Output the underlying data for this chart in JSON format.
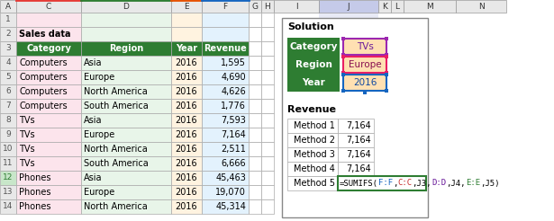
{
  "left_cols": [
    "A",
    "C",
    "D",
    "E",
    "F",
    "G",
    "H"
  ],
  "right_cols": [
    "I",
    "J",
    "K",
    "L",
    "M",
    "N"
  ],
  "left_data": [
    [
      "1",
      "",
      "",
      "",
      ""
    ],
    [
      "2",
      "Sales data",
      "",
      "",
      ""
    ],
    [
      "3",
      "Category",
      "Region",
      "Year",
      "Revenue"
    ],
    [
      "4",
      "Computers",
      "Asia",
      "2016",
      "1,595"
    ],
    [
      "5",
      "Computers",
      "Europe",
      "2016",
      "4,690"
    ],
    [
      "6",
      "Computers",
      "North America",
      "2016",
      "4,626"
    ],
    [
      "7",
      "Computers",
      "South America",
      "2016",
      "1,776"
    ],
    [
      "8",
      "TVs",
      "Asia",
      "2016",
      "7,593"
    ],
    [
      "9",
      "TVs",
      "Europe",
      "2016",
      "7,164"
    ],
    [
      "10",
      "TVs",
      "North America",
      "2016",
      "2,511"
    ],
    [
      "11",
      "TVs",
      "South America",
      "2016",
      "6,666"
    ],
    [
      "12",
      "Phones",
      "Asia",
      "2016",
      "45,463"
    ],
    [
      "13",
      "Phones",
      "Europe",
      "2016",
      "19,070"
    ],
    [
      "14",
      "Phones",
      "North America",
      "2016",
      "45,314"
    ]
  ],
  "header_bg": "#2e7d32",
  "header_fg": "#ffffff",
  "col_c_bg": "#fce4ec",
  "col_d_bg": "#e8f5e9",
  "col_e_bg": "#fff3e0",
  "col_f_bg": "#e3f2fd",
  "col_c_border": "#e53935",
  "col_d_border": "#2e7d32",
  "col_e_border": "#e65100",
  "col_f_border": "#1565c0",
  "row12_highlight": "#c8e6c9",
  "solution_title": "Solution",
  "sol_label_bg": "#2e7d32",
  "sol_label_fg": "#ffffff",
  "sol_tvs_text": "TVs",
  "sol_europe_text": "Europe",
  "sol_year_text": "2016",
  "sol_tvs_bg": "#ffe0b2",
  "sol_europe_bg": "#ffe0b2",
  "sol_year_bg": "#ffe0b2",
  "sol_tvs_border": "#9c27b0",
  "sol_europe_border": "#e91e63",
  "sol_year_border": "#1565c0",
  "sol_tvs_color": "#6a1b9a",
  "sol_europe_color": "#880e4f",
  "sol_year_color": "#0d47a1",
  "revenue_label": "Revenue",
  "methods": [
    "Method 1",
    "Method 2",
    "Method 3",
    "Method 4",
    "Method 5"
  ],
  "method_values": [
    "7,164",
    "7,164",
    "7,164",
    "7,164",
    ""
  ],
  "formula_parts": [
    {
      "text": "=SUMIFS(",
      "color": "#000000"
    },
    {
      "text": "F:F",
      "color": "#1565c0"
    },
    {
      "text": ",",
      "color": "#000000"
    },
    {
      "text": "C:C",
      "color": "#c62828"
    },
    {
      "text": ",J3,",
      "color": "#000000"
    },
    {
      "text": "D:D",
      "color": "#6a1b9a"
    },
    {
      "text": ",J4,",
      "color": "#000000"
    },
    {
      "text": "E:E",
      "color": "#2e7d32"
    },
    {
      "text": ",J5)",
      "color": "#000000"
    }
  ]
}
